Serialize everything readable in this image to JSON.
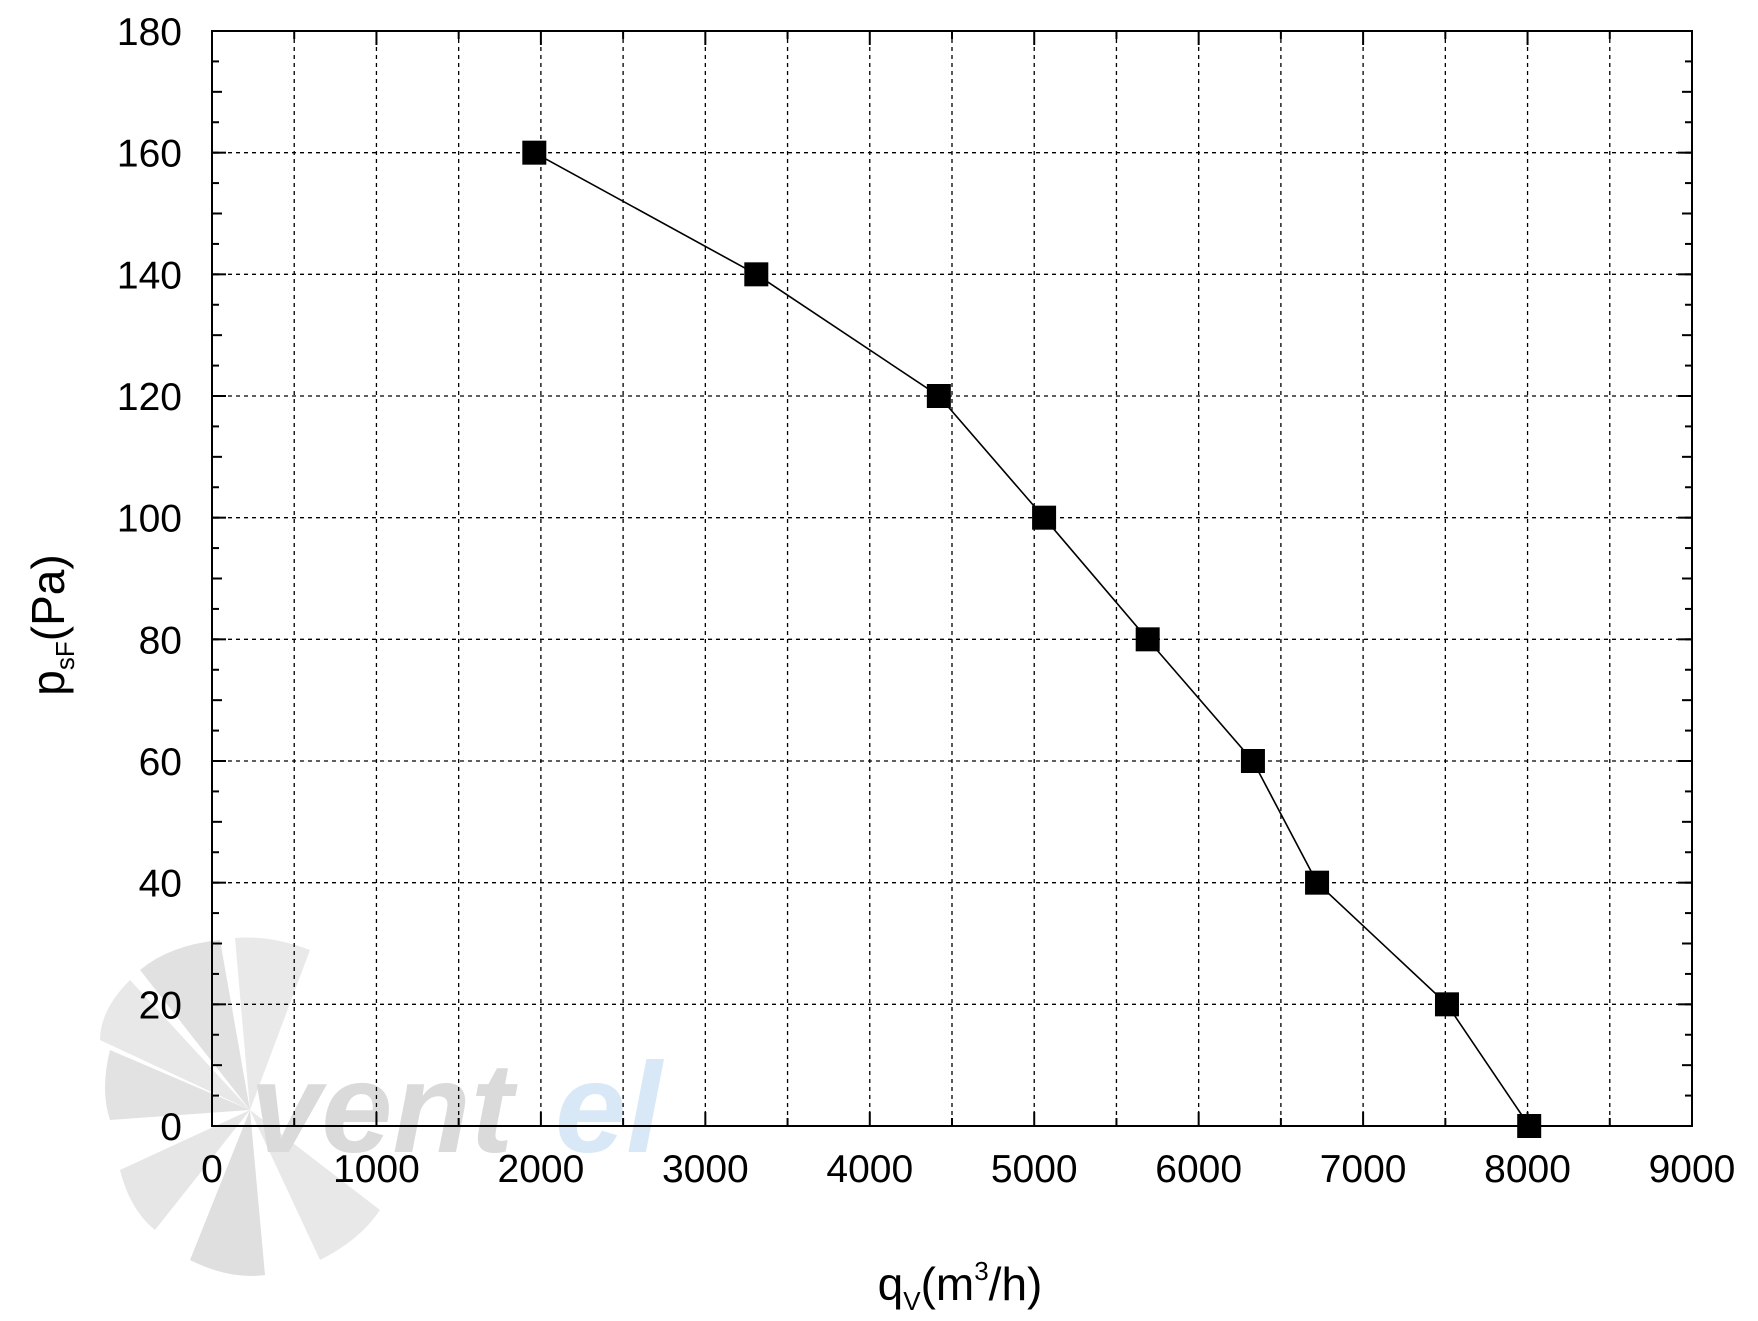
{
  "chart_data": {
    "type": "line",
    "x_label": {
      "main": "q",
      "sub": "V",
      "pre_sup": "(m",
      "sup": "3",
      "post_sup": "/h)"
    },
    "y_label": {
      "main": "p",
      "sub": "sF",
      "rest": "(Pa)"
    },
    "xlim": [
      0,
      9000
    ],
    "ylim": [
      0,
      180
    ],
    "x_ticks": [
      "0",
      "1000",
      "2000",
      "3000",
      "4000",
      "5000",
      "6000",
      "7000",
      "8000",
      "9000"
    ],
    "y_ticks": [
      "0",
      "20",
      "40",
      "60",
      "80",
      "100",
      "120",
      "140",
      "160",
      "180"
    ],
    "grid": true,
    "marker": "square",
    "series": [
      {
        "x": [
          1960,
          3310,
          4420,
          5060,
          5690,
          6330,
          6720,
          7510,
          8010
        ],
        "y": [
          160,
          140,
          120,
          100,
          80,
          60,
          40,
          20,
          0
        ]
      }
    ],
    "colors": {
      "line": "#000000",
      "marker": "#000000",
      "grid": "#000000",
      "watermark_gray": "#d9d9d9",
      "watermark_blue": "#d6e7f7"
    }
  },
  "watermark": {
    "part1": "vent",
    "part2": "el"
  }
}
